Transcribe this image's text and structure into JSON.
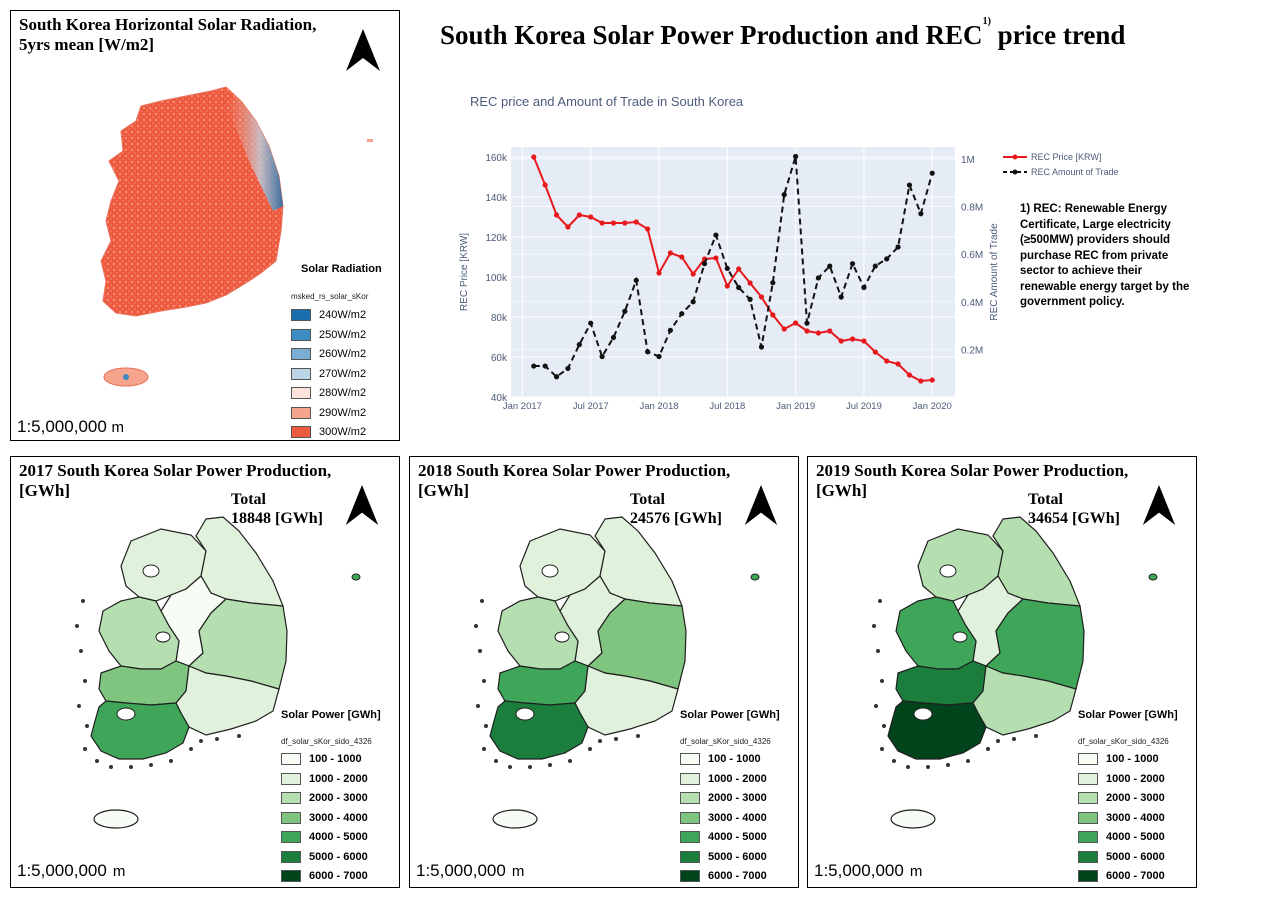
{
  "main_title": "South Korea Solar Power Production and REC",
  "main_title_sup": "1)",
  "main_title_tail": "price trend",
  "radiation_panel": {
    "title_line1": "South Korea Horizontal Solar Radiation,",
    "title_line2": "5yrs mean [W/m2]",
    "scale": "1:5,000,000",
    "scale_unit": "m",
    "legend_title": "Solar Radiation",
    "legend_layer": "msked_rs_solar_sKor",
    "legend_items": [
      {
        "label": "240W/m2",
        "color": "#1a6fae"
      },
      {
        "label": "250W/m2",
        "color": "#3d8cc4"
      },
      {
        "label": "260W/m2",
        "color": "#7aaed4"
      },
      {
        "label": "270W/m2",
        "color": "#bcd6e8"
      },
      {
        "label": "280W/m2",
        "color": "#fbe2da"
      },
      {
        "label": "290W/m2",
        "color": "#f6a58d"
      },
      {
        "label": "300W/m2",
        "color": "#ee5a40"
      }
    ]
  },
  "chart_data": {
    "type": "line",
    "title": "REC price and Amount of Trade in South Korea",
    "x": [
      "2017-02",
      "2017-03",
      "2017-04",
      "2017-05",
      "2017-06",
      "2017-07",
      "2017-08",
      "2017-09",
      "2017-10",
      "2017-11",
      "2017-12",
      "2018-01",
      "2018-02",
      "2018-03",
      "2018-04",
      "2018-05",
      "2018-06",
      "2018-07",
      "2018-08",
      "2018-09",
      "2018-10",
      "2018-11",
      "2018-12",
      "2019-01",
      "2019-02",
      "2019-03",
      "2019-04",
      "2019-05",
      "2019-06",
      "2019-07",
      "2019-08",
      "2019-09",
      "2019-10",
      "2019-11",
      "2019-12",
      "2020-01"
    ],
    "xticks": [
      "Jan 2017",
      "Jul 2017",
      "Jan 2018",
      "Jul 2018",
      "Jan 2019",
      "Jul 2019",
      "Jan 2020"
    ],
    "ylabel": "REC Price [KRW]",
    "y2label": "REC Amount of Trade",
    "ylim": [
      40000,
      165000
    ],
    "y2lim": [
      0,
      1050000
    ],
    "yticks": [
      "40k",
      "60k",
      "80k",
      "100k",
      "120k",
      "140k",
      "160k"
    ],
    "y2ticks": [
      "0.2M",
      "0.4M",
      "0.6M",
      "0.8M",
      "1M"
    ],
    "legend_position": "top-right-outside",
    "series": [
      {
        "name": "REC Price [KRW]",
        "axis": "left",
        "color": "#e8191d",
        "dash": "solid",
        "values": [
          160000,
          146000,
          131000,
          125000,
          131000,
          130000,
          127000,
          127000,
          127000,
          127500,
          124000,
          102000,
          112000,
          110000,
          101500,
          109000,
          109500,
          95500,
          104000,
          97000,
          90000,
          81000,
          74000,
          77000,
          73000,
          72000,
          73000,
          68000,
          69000,
          68000,
          62500,
          58000,
          56500,
          51000,
          48000,
          48500
        ]
      },
      {
        "name": "REC Amount of Trade",
        "axis": "right",
        "color": "#111111",
        "dash": "dashed",
        "values": [
          130000,
          130000,
          85000,
          120000,
          220000,
          310000,
          170000,
          250000,
          360000,
          490000,
          190000,
          170000,
          280000,
          350000,
          400000,
          560000,
          680000,
          540000,
          460000,
          410000,
          210000,
          480000,
          850000,
          1010000,
          310000,
          500000,
          550000,
          420000,
          560000,
          460000,
          550000,
          580000,
          630000,
          890000,
          770000,
          940000
        ]
      }
    ]
  },
  "note": "1) REC: Renewable Energy Certificate, Large electricity (≥500MW) providers should purchase REC from private sector to achieve their renewable energy target by the government policy.",
  "production_legend": {
    "title": "Solar Power [GWh]",
    "layer": "df_solar_sKor_sido_4326",
    "items": [
      {
        "label": "100 - 1000",
        "color": "#f7fcf5"
      },
      {
        "label": "1000 - 2000",
        "color": "#e0f2dc"
      },
      {
        "label": "2000 - 3000",
        "color": "#b5dfb0"
      },
      {
        "label": "3000 - 4000",
        "color": "#7fc47f"
      },
      {
        "label": "4000 - 5000",
        "color": "#3fa659"
      },
      {
        "label": "5000 - 6000",
        "color": "#1b7e3c"
      },
      {
        "label": "6000 - 7000",
        "color": "#00441b"
      }
    ]
  },
  "production_panels": [
    {
      "title_line1": "2017 South Korea Solar Power Production,",
      "title_line2": "[GWh]",
      "total_label": "Total",
      "total_value": "18848 [GWh]",
      "scale": "1:5,000,000",
      "scale_unit": "m",
      "region_colors": {
        "gyeonggi": "#e0f2dc",
        "gangwon": "#e0f2dc",
        "chungbuk": "#f7fcf5",
        "chungnam": "#b5dfb0",
        "gyeongbuk": "#b5dfb0",
        "jeonbuk": "#7fc47f",
        "gyeongnam": "#e0f2dc",
        "jeonnam": "#3fa659",
        "jeju": "#f7fcf5",
        "ulleung": "#3fa659"
      }
    },
    {
      "title_line1": "2018 South Korea Solar Power Production,",
      "title_line2": "[GWh]",
      "total_label": "Total",
      "total_value": "24576 [GWh]",
      "scale": "1:5,000,000",
      "scale_unit": "m",
      "region_colors": {
        "gyeonggi": "#e0f2dc",
        "gangwon": "#e0f2dc",
        "chungbuk": "#e0f2dc",
        "chungnam": "#b5dfb0",
        "gyeongbuk": "#7fc47f",
        "jeonbuk": "#3fa659",
        "gyeongnam": "#e0f2dc",
        "jeonnam": "#1b7e3c",
        "jeju": "#f7fcf5",
        "ulleung": "#3fa659"
      }
    },
    {
      "title_line1": "2019 South Korea Solar Power Production,",
      "title_line2": "[GWh]",
      "total_label": "Total",
      "total_value": "34654 [GWh]",
      "scale": "1:5,000,000",
      "scale_unit": "m",
      "region_colors": {
        "gyeonggi": "#b5dfb0",
        "gangwon": "#b5dfb0",
        "chungbuk": "#e0f2dc",
        "chungnam": "#3fa659",
        "gyeongbuk": "#3fa659",
        "jeonbuk": "#1b7e3c",
        "gyeongnam": "#b5dfb0",
        "jeonnam": "#00441b",
        "jeju": "#f7fcf5",
        "ulleung": "#3fa659"
      }
    }
  ]
}
